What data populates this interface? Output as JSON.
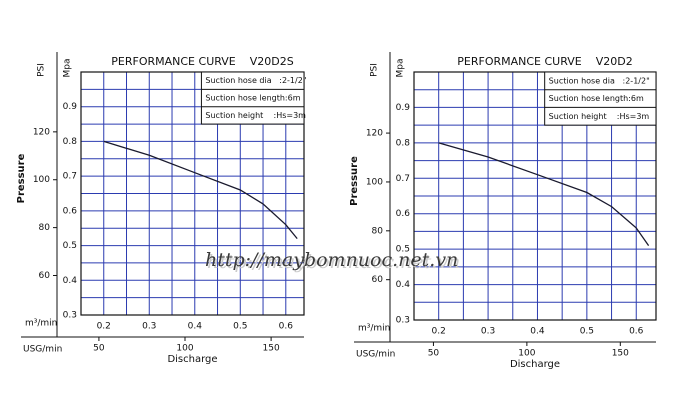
{
  "watermark": "http://maybomnuoc.net.vn",
  "chart_data": [
    {
      "type": "line",
      "title": "PERFORMANCE CURVE    V20D2S",
      "y_label": "Mpa",
      "y2_label": "PSI",
      "y_axis_title": "Pressure",
      "x_label": "m³/min",
      "x2_label": "USG/min",
      "x_axis_title": "Discharge",
      "info": [
        "Suction hose dia   :2-1/2\"",
        "Suction hose length:6m",
        "Suction height    :Hs=3m"
      ],
      "x": [
        0.2,
        0.3,
        0.4,
        0.5,
        0.55,
        0.6,
        0.625
      ],
      "series": [
        {
          "color": "#1a1a2e",
          "values": [
            0.8,
            0.76,
            0.71,
            0.66,
            0.62,
            0.56,
            0.52
          ]
        }
      ],
      "xlim": [
        0.15,
        0.64
      ],
      "xticks": [
        0.2,
        0.3,
        0.4,
        0.5,
        0.6
      ],
      "x2lim": [
        39.6,
        169.1
      ],
      "x2ticks": [
        50,
        100,
        150
      ],
      "ylim": [
        0.3,
        1.0
      ],
      "yticks": [
        0.3,
        0.4,
        0.5,
        0.6,
        0.7,
        0.8,
        0.9
      ],
      "y2lim": [
        43.5,
        145
      ],
      "y2ticks": [
        60,
        80,
        100,
        120
      ],
      "grid": true,
      "grid_color": "#2b3bb0"
    },
    {
      "type": "line",
      "title": "PERFORMANCE CURVE    V20D2",
      "y_label": "Mpa",
      "y2_label": "PSI",
      "y_axis_title": "Pressure",
      "x_label": "m³/min",
      "x2_label": "USG/min",
      "x_axis_title": "Discharge",
      "info": [
        "Suction hose dia   :2-1/2\"",
        "Suction hose length:6m",
        "Suction height    :Hs=3m"
      ],
      "x": [
        0.2,
        0.3,
        0.4,
        0.5,
        0.55,
        0.6,
        0.625
      ],
      "series": [
        {
          "color": "#1a1a2e",
          "values": [
            0.8,
            0.76,
            0.71,
            0.66,
            0.62,
            0.56,
            0.51
          ]
        }
      ],
      "xlim": [
        0.15,
        0.64
      ],
      "xticks": [
        0.2,
        0.3,
        0.4,
        0.5,
        0.6
      ],
      "x2lim": [
        39.6,
        169.1
      ],
      "x2ticks": [
        50,
        100,
        150
      ],
      "ylim": [
        0.3,
        1.0
      ],
      "yticks": [
        0.3,
        0.4,
        0.5,
        0.6,
        0.7,
        0.8,
        0.9
      ],
      "y2lim": [
        43.5,
        145
      ],
      "y2ticks": [
        60,
        80,
        100,
        120
      ],
      "grid": true,
      "grid_color": "#2b3bb0"
    }
  ]
}
